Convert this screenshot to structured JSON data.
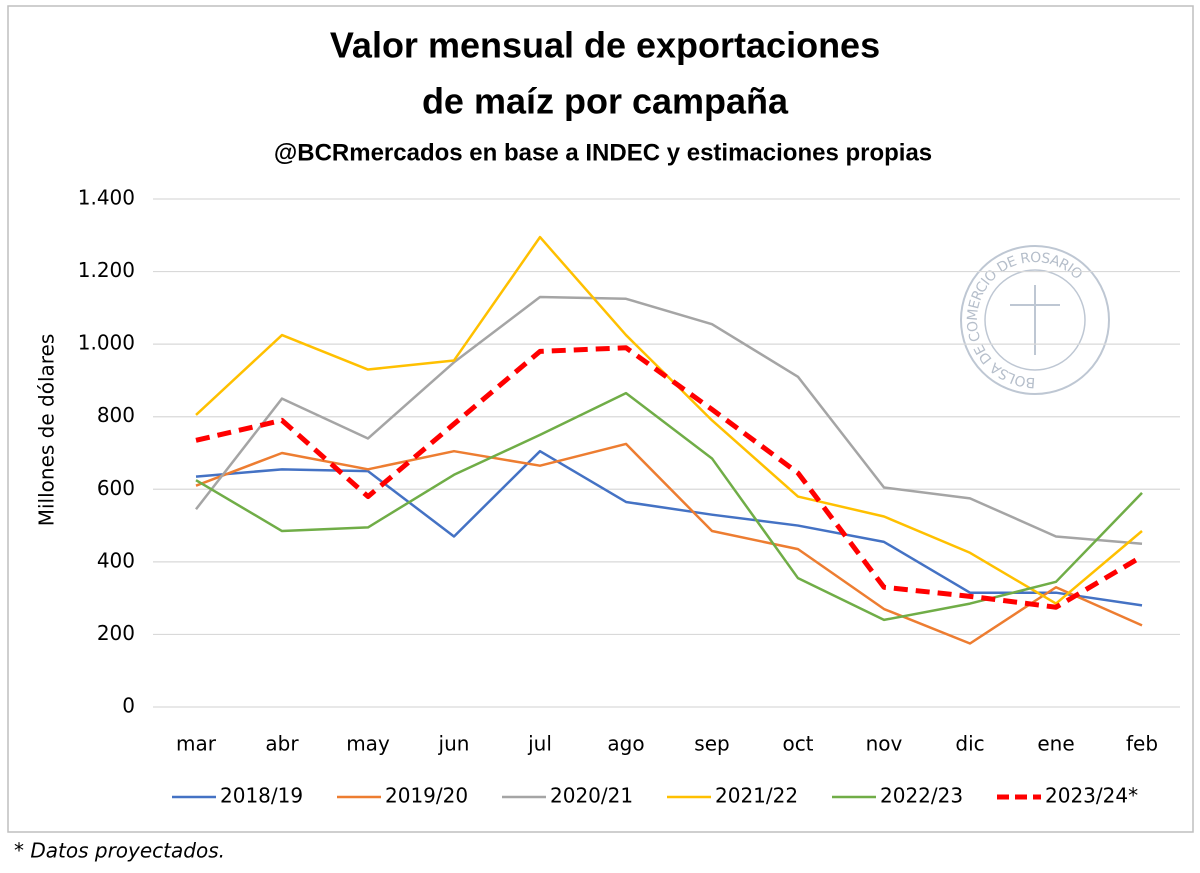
{
  "chart_data": {
    "type": "line",
    "title": [
      "Valor mensual de exportaciones",
      "de maíz por campaña"
    ],
    "subtitle": "@BCRmercados en base a INDEC y estimaciones propias",
    "y_label": "Millones de dólares",
    "footnote": "* Datos proyectados.",
    "watermark": "BOLSA DE COMERCIO DE ROSARIO",
    "categories": [
      "mar",
      "abr",
      "may",
      "jun",
      "jul",
      "ago",
      "sep",
      "oct",
      "nov",
      "dic",
      "ene",
      "feb"
    ],
    "ylim": [
      0,
      1400
    ],
    "yticks": [
      0,
      200,
      400,
      600,
      800,
      {
        "value": 1000,
        "label": "1.000"
      },
      {
        "value": 1200,
        "label": "1.200"
      },
      {
        "value": 1400,
        "label": "1.400"
      }
    ],
    "grid": true,
    "legend": "bottom",
    "series": [
      {
        "name": "2018/19",
        "color": "#4472c4",
        "values": [
          635,
          655,
          650,
          470,
          705,
          565,
          530,
          500,
          455,
          315,
          315,
          280
        ]
      },
      {
        "name": "2019/20",
        "color": "#ed7d31",
        "values": [
          610,
          700,
          655,
          705,
          665,
          725,
          485,
          435,
          270,
          175,
          330,
          225
        ]
      },
      {
        "name": "2020/21",
        "color": "#a5a5a5",
        "values": [
          545,
          850,
          740,
          950,
          1130,
          1125,
          1055,
          910,
          605,
          575,
          470,
          450
        ]
      },
      {
        "name": "2021/22",
        "color": "#ffc000",
        "values": [
          805,
          1025,
          930,
          955,
          1295,
          1025,
          790,
          580,
          525,
          425,
          285,
          485
        ]
      },
      {
        "name": "2022/23",
        "color": "#70ad47",
        "values": [
          625,
          485,
          495,
          640,
          750,
          865,
          685,
          355,
          240,
          285,
          345,
          590
        ]
      },
      {
        "name": "2023/24*",
        "color": "#ff0000",
        "dashed": true,
        "values": [
          735,
          790,
          580,
          780,
          980,
          990,
          820,
          645,
          330,
          305,
          275,
          415
        ]
      }
    ]
  }
}
